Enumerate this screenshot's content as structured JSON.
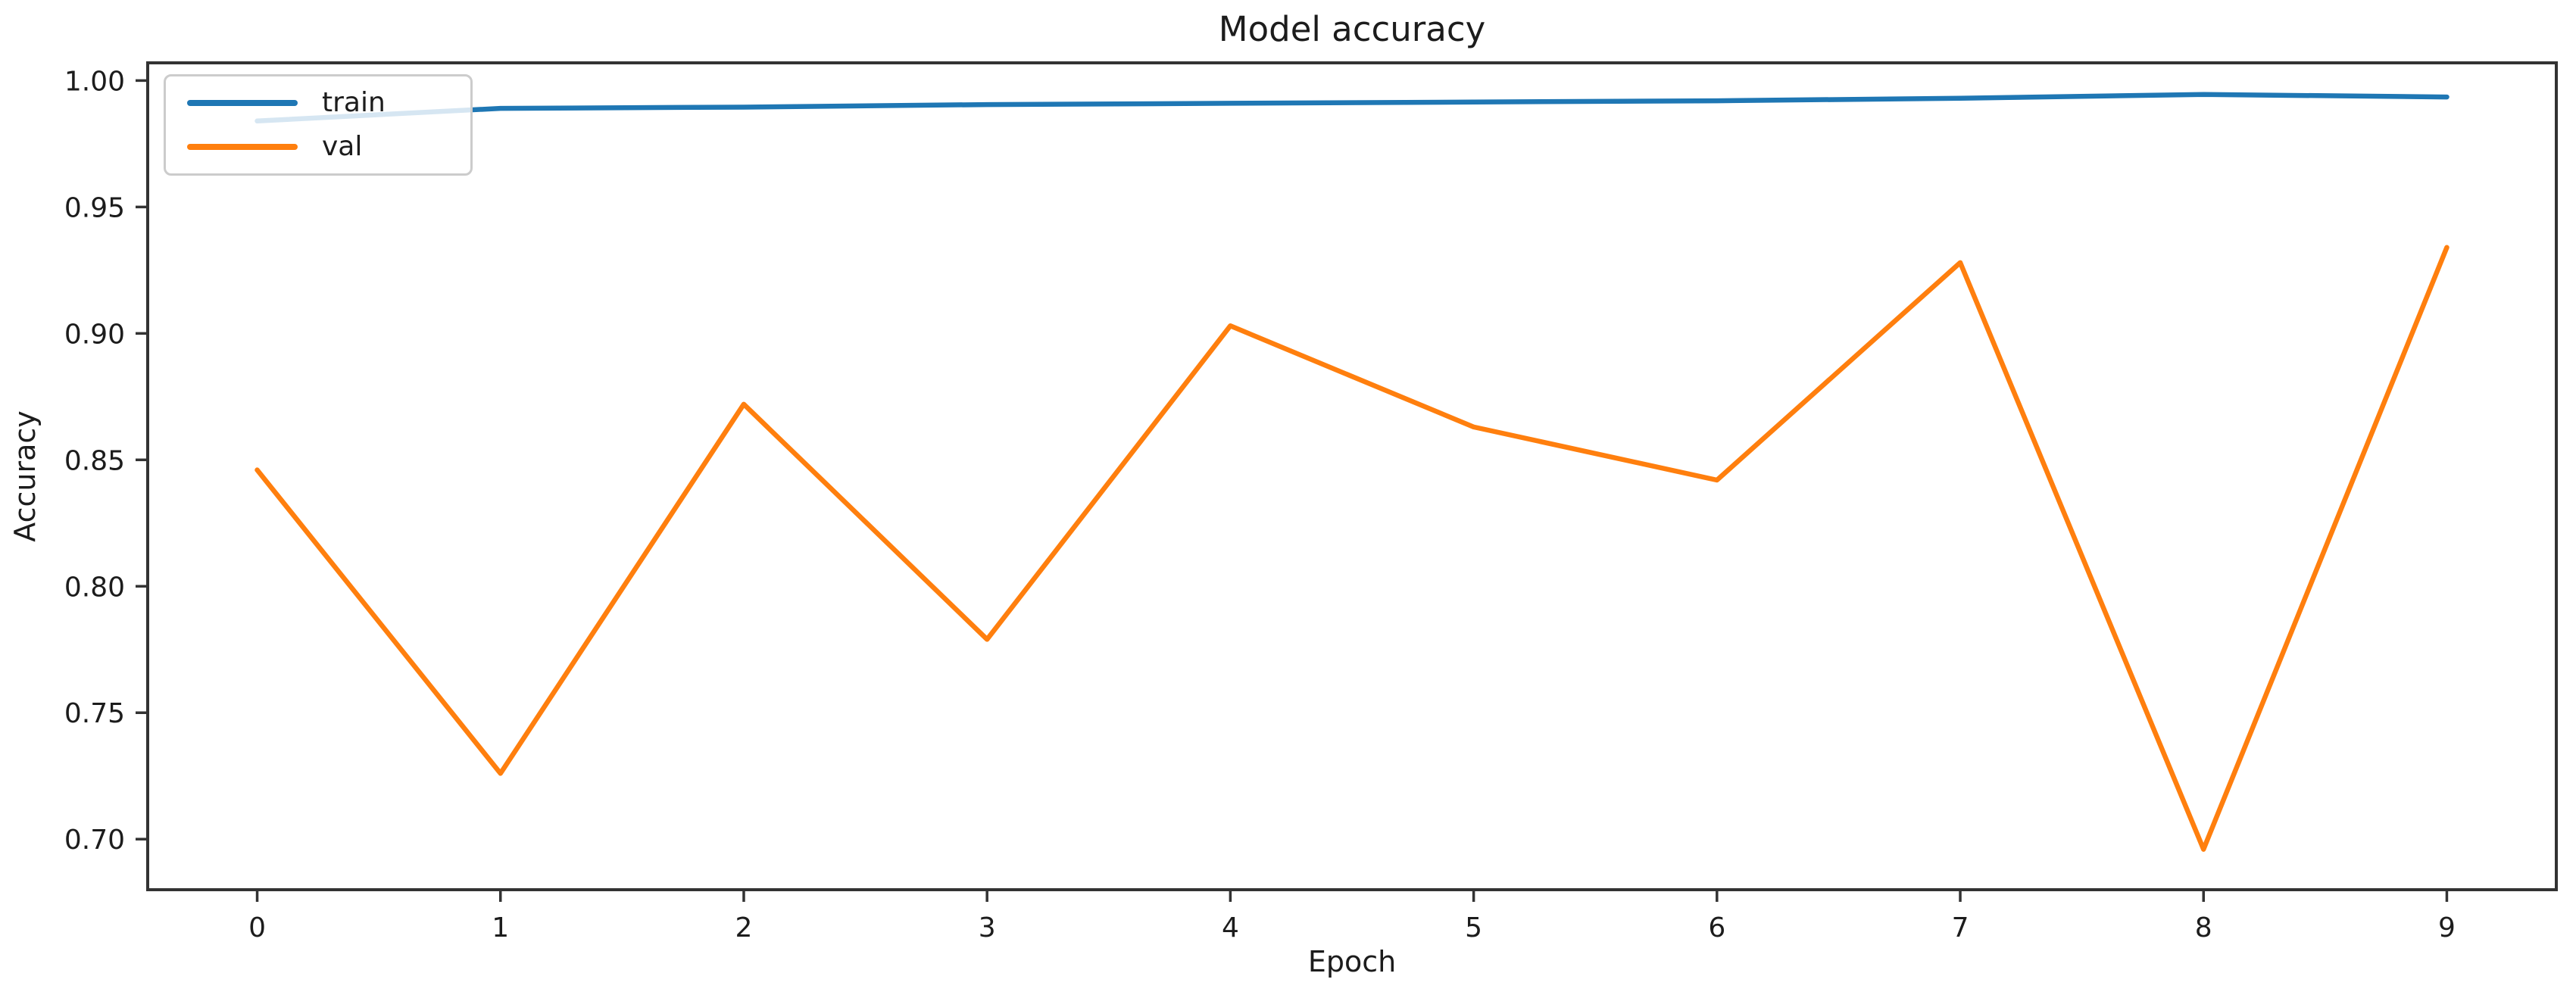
{
  "figure": {
    "title": "Model accuracy",
    "xlabel": "Epoch",
    "ylabel": "Accuracy"
  },
  "legend": {
    "position": "upper left",
    "items": [
      {
        "label": "train"
      },
      {
        "label": "val"
      }
    ]
  },
  "chart_data": {
    "type": "line",
    "title": "Model accuracy",
    "xlabel": "Epoch",
    "ylabel": "Accuracy",
    "x": [
      0,
      1,
      2,
      3,
      4,
      5,
      6,
      7,
      8,
      9
    ],
    "series": [
      {
        "name": "train",
        "color": "#1f77b4",
        "values": [
          0.984,
          0.989,
          0.9895,
          0.9905,
          0.991,
          0.9915,
          0.992,
          0.993,
          0.9945,
          0.9935
        ]
      },
      {
        "name": "val",
        "color": "#ff7f0e",
        "values": [
          0.846,
          0.726,
          0.872,
          0.779,
          0.903,
          0.863,
          0.842,
          0.928,
          0.696,
          0.934
        ]
      }
    ],
    "xlim": [
      -0.45,
      9.45
    ],
    "ylim": [
      0.68,
      1.007
    ],
    "xticks": [
      0,
      1,
      2,
      3,
      4,
      5,
      6,
      7,
      8,
      9
    ],
    "xtick_labels": [
      "0",
      "1",
      "2",
      "3",
      "4",
      "5",
      "6",
      "7",
      "8",
      "9"
    ],
    "yticks": [
      0.7,
      0.75,
      0.8,
      0.85,
      0.9,
      0.95,
      1.0
    ],
    "ytick_labels": [
      "0.70",
      "0.75",
      "0.80",
      "0.85",
      "0.90",
      "0.95",
      "1.00"
    ],
    "legend_position": "upper left",
    "grid": false,
    "background": "#ffffff",
    "axis_color": "#333333",
    "text_color": "#1c1c1c"
  }
}
